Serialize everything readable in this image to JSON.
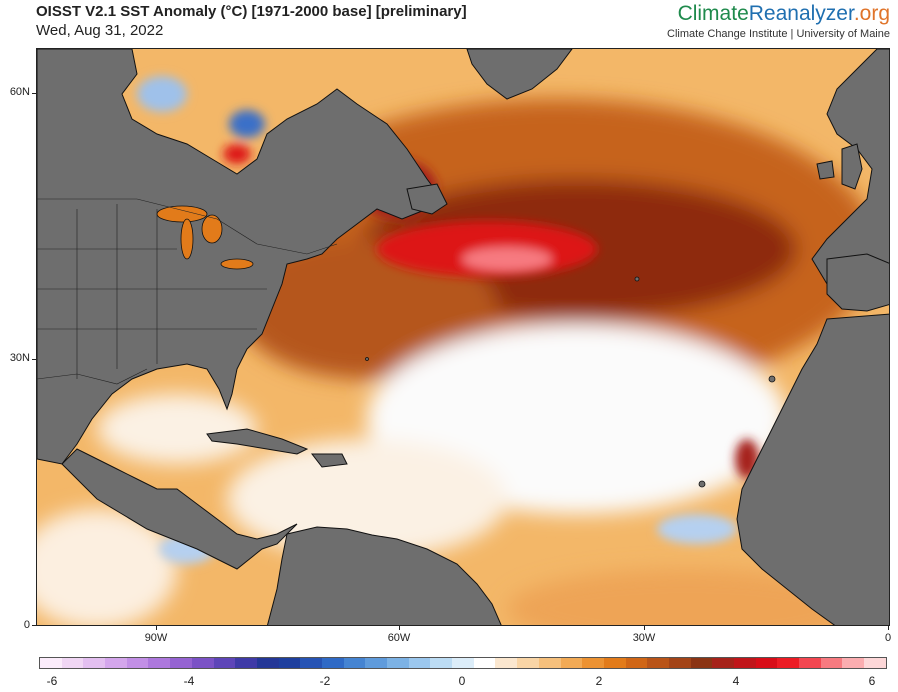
{
  "header": {
    "title": "OISST V2.1 SST Anomaly (°C) [1971-2000 base] [preliminary]",
    "date": "Wed, Aug 31, 2022"
  },
  "brand": {
    "part1": "Climate",
    "part2": "Reanalyzer",
    "part3": ".org",
    "subtitle": "Climate Change Institute | University of Maine"
  },
  "map": {
    "lat_labels": [
      "60N",
      "30N",
      "0"
    ],
    "lon_labels": [
      "90W",
      "60W",
      "30W",
      "0"
    ],
    "colors": {
      "land": "#6e6e6e",
      "coast": "#111111",
      "neutral": "#fbfbfb",
      "warm_light": "#f6c98a",
      "warm_mid": "#e8891f",
      "warm_dark": "#b5561b",
      "warm_deep": "#8e2c10",
      "hot": "#dd1216",
      "cool": "#9fc1ea",
      "cool_dark": "#3a6fc8"
    }
  },
  "colorbar": {
    "labels": [
      "-6",
      "-4",
      "-2",
      "0",
      "2",
      "4",
      "6"
    ],
    "colors": [
      "#fbecfb",
      "#f0d6f4",
      "#e3bff0",
      "#d4a6ec",
      "#c28fe6",
      "#ad78dd",
      "#9563d2",
      "#7b52c6",
      "#5e45b8",
      "#3f3aa7",
      "#243797",
      "#1e3f9e",
      "#2653b4",
      "#2f6ac6",
      "#4584d2",
      "#5f9bdc",
      "#7cb2e5",
      "#9bc7ee",
      "#bcdcf4",
      "#dcedf9",
      "#ffffff",
      "#fbe7cf",
      "#f9d5a6",
      "#f6c07c",
      "#f2aa55",
      "#ec9232",
      "#e27b1a",
      "#d06616",
      "#b95418",
      "#a34418",
      "#8b3414",
      "#a6221a",
      "#c0151a",
      "#d80d18",
      "#ec1b24",
      "#f34650",
      "#f77a80",
      "#fbadb0",
      "#fdd7d8"
    ]
  }
}
